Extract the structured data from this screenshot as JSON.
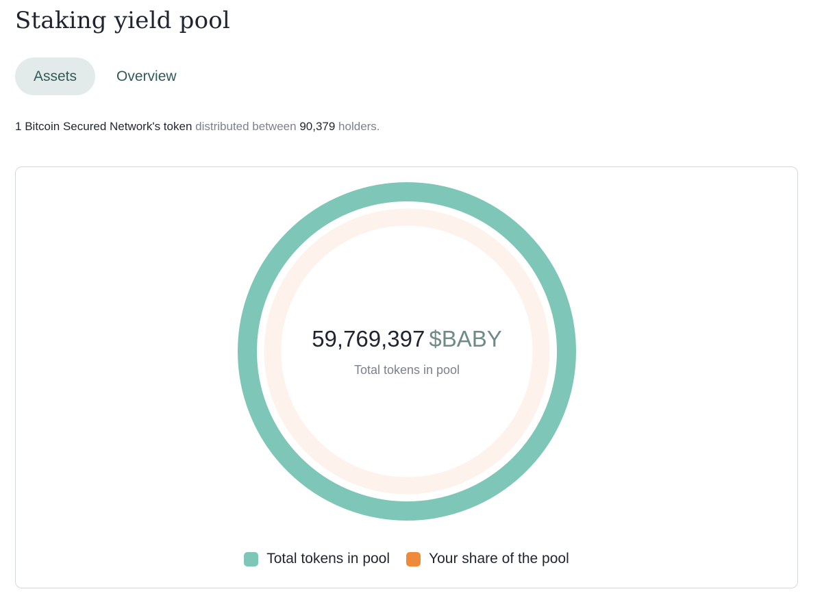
{
  "page": {
    "title": "Staking yield pool"
  },
  "tabs": [
    {
      "label": "Assets",
      "active": true
    },
    {
      "label": "Overview",
      "active": false
    }
  ],
  "description": {
    "count_part": "1",
    "network_part": "Bitcoin Secured Network's token",
    "middle_part": "distributed between",
    "holders_count": "90,379",
    "end_part": "holders."
  },
  "pool": {
    "total_value": "59,769,397",
    "unit": "$BABY",
    "caption": "Total tokens in pool",
    "your_share_fraction": 0
  },
  "legend": [
    {
      "label": "Total tokens in pool",
      "color": "#7ec7b8"
    },
    {
      "label": "Your share of the pool",
      "color": "#ee8a3a"
    }
  ],
  "colors": {
    "outer_ring": "#7ec7b8",
    "inner_ring_track": "#fdf3ec",
    "share_color": "#ee8a3a"
  }
}
